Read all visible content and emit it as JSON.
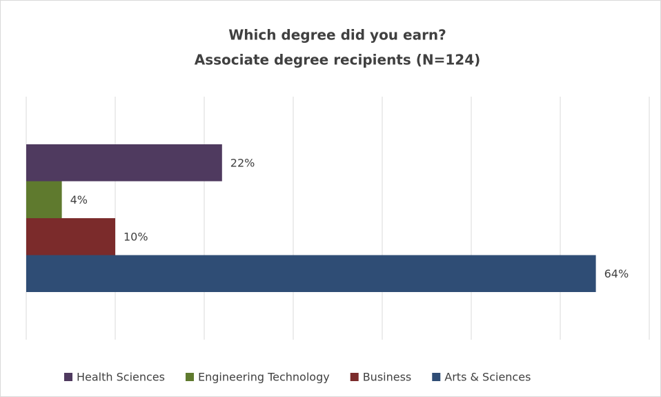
{
  "chart_data": {
    "type": "bar",
    "orientation": "horizontal",
    "title": "Which degree did you earn?",
    "subtitle": "Associate degree recipients (N=124)",
    "series": [
      {
        "name": "Health Sciences",
        "color": "#4f3a5f",
        "values": [
          22
        ],
        "value_labels": [
          "22%"
        ]
      },
      {
        "name": "Engineering Technology",
        "color": "#5f7a2e",
        "values": [
          4
        ],
        "value_labels": [
          "4%"
        ]
      },
      {
        "name": "Business",
        "color": "#7b2b2b",
        "values": [
          10
        ],
        "value_labels": [
          "10%"
        ]
      },
      {
        "name": "Arts & Sciences",
        "color": "#2f4d75",
        "values": [
          64
        ],
        "value_labels": [
          "64%"
        ]
      }
    ],
    "xlim": [
      0,
      70
    ],
    "xticks": [
      0,
      10,
      20,
      30,
      40,
      50,
      60,
      70
    ],
    "grid": true,
    "legend": "bottom"
  }
}
